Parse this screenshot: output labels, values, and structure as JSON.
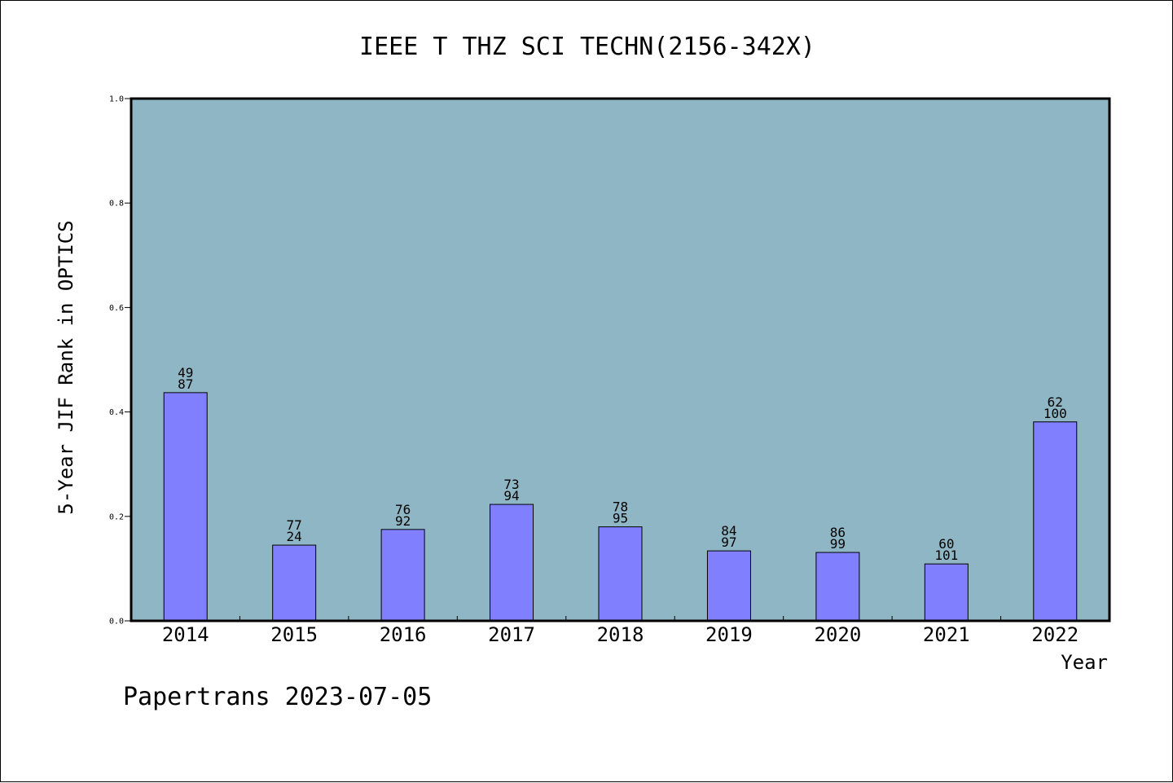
{
  "chart_data": {
    "type": "bar",
    "title": "IEEE T THZ SCI TECHN(2156-342X)",
    "xlabel": "Year",
    "ylabel": "5-Year JIF Rank in OPTICS",
    "ylim": [
      0,
      1.0
    ],
    "yticks": [
      "0.0",
      "0.2",
      "0.4",
      "0.6",
      "0.8",
      "1.0"
    ],
    "categories": [
      "2014",
      "2015",
      "2016",
      "2017",
      "2018",
      "2019",
      "2020",
      "2021",
      "2022"
    ],
    "values": [
      0.437,
      0.145,
      0.175,
      0.223,
      0.18,
      0.134,
      0.131,
      0.109,
      0.381
    ],
    "labels_top": [
      "49",
      "77",
      "76",
      "73",
      "78",
      "84",
      "86",
      "60",
      "62"
    ],
    "labels_bottom": [
      "87",
      "24",
      "92",
      "94",
      "95",
      "97",
      "99",
      "101",
      "100"
    ],
    "colors": {
      "plot_background": "#8fb6c4",
      "bar_fill": "#8080ff",
      "bar_stroke": "#000000"
    },
    "grid": false
  },
  "footer": {
    "text": "Papertrans 2023-07-05"
  }
}
